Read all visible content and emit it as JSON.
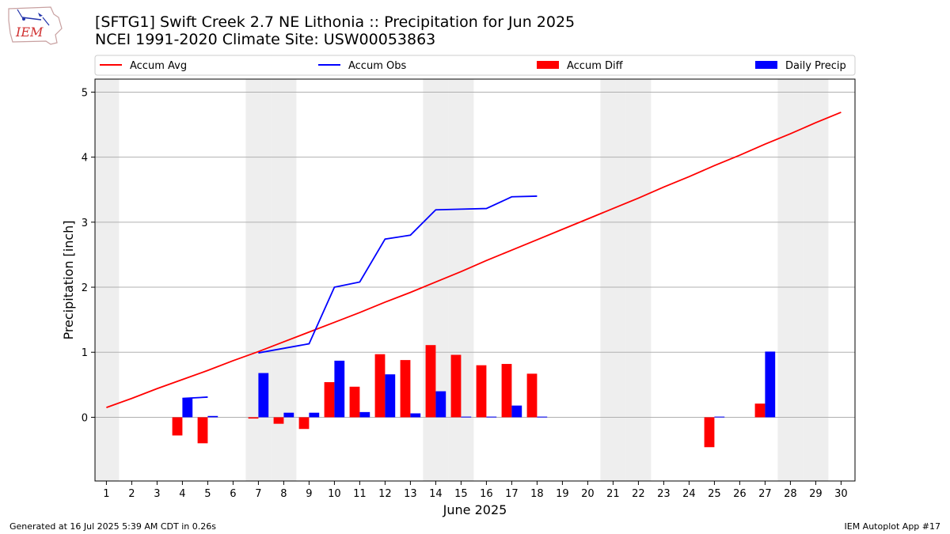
{
  "header": {
    "title_line1": "[SFTG1] Swift Creek 2.7 NE Lithonia :: Precipitation for Jun 2025",
    "title_line2": "NCEI 1991-2020 Climate Site: USW00053863",
    "logo_text": "IEM"
  },
  "footer": {
    "generated": "Generated at 16 Jul 2025 5:39 AM CDT in 0.26s",
    "app": "IEM Autoplot App #17"
  },
  "colors": {
    "accum_avg": "#ff0000",
    "accum_obs": "#0000ff",
    "accum_diff": "#ff0000",
    "daily_precip": "#0000ff",
    "weekend_shade": "#eeeeee",
    "grid": "#b0b0b0"
  },
  "chart_data": {
    "type": "bar",
    "xlabel": "June 2025",
    "ylabel": "Precipitation [inch]",
    "ylim": [
      -0.98,
      5.2
    ],
    "yticks": [
      0,
      1,
      2,
      3,
      4,
      5
    ],
    "grid": "horizontal",
    "legend_position": "top, above plot",
    "x": [
      1,
      2,
      3,
      4,
      5,
      6,
      7,
      8,
      9,
      10,
      11,
      12,
      13,
      14,
      15,
      16,
      17,
      18,
      19,
      20,
      21,
      22,
      23,
      24,
      25,
      26,
      27,
      28,
      29,
      30
    ],
    "weekend_days": [
      1,
      7,
      8,
      14,
      15,
      21,
      22,
      28,
      29
    ],
    "series": [
      {
        "name": "Accum Avg",
        "kind": "line",
        "x": [
          1,
          2,
          3,
          4,
          5,
          6,
          7,
          8,
          9,
          10,
          11,
          12,
          13,
          14,
          15,
          16,
          17,
          18,
          19,
          20,
          21,
          22,
          23,
          24,
          25,
          26,
          27,
          28,
          29,
          30
        ],
        "values": [
          0.15,
          0.29,
          0.44,
          0.58,
          0.72,
          0.87,
          1.01,
          1.16,
          1.31,
          1.46,
          1.61,
          1.77,
          1.92,
          2.08,
          2.24,
          2.41,
          2.57,
          2.73,
          2.89,
          3.05,
          3.21,
          3.37,
          3.54,
          3.7,
          3.87,
          4.03,
          4.2,
          4.36,
          4.53,
          4.69
        ]
      },
      {
        "name": "Accum Obs",
        "kind": "line",
        "segments": [
          {
            "x": [
              4,
              5
            ],
            "values": [
              0.29,
              0.31
            ]
          },
          {
            "x": [
              7,
              8,
              9,
              10,
              11,
              12,
              13,
              14,
              15,
              16,
              17,
              18
            ],
            "values": [
              0.99,
              1.06,
              1.13,
              2.0,
              2.08,
              2.74,
              2.8,
              3.19,
              3.2,
              3.21,
              3.39,
              3.4
            ]
          }
        ]
      },
      {
        "name": "Accum Diff",
        "kind": "bar",
        "x": [
          4,
          5,
          7,
          8,
          9,
          10,
          11,
          12,
          13,
          14,
          15,
          16,
          17,
          18,
          25,
          27
        ],
        "values": [
          -0.28,
          -0.4,
          -0.02,
          -0.1,
          -0.18,
          0.54,
          0.47,
          0.97,
          0.88,
          1.11,
          0.96,
          0.8,
          0.82,
          0.67,
          -0.46,
          0.21
        ]
      },
      {
        "name": "Daily Precip",
        "kind": "bar",
        "x": [
          4,
          5,
          7,
          8,
          9,
          10,
          11,
          12,
          13,
          14,
          15,
          16,
          17,
          18,
          25,
          27
        ],
        "values": [
          0.29,
          0.02,
          0.68,
          0.07,
          0.07,
          0.87,
          0.08,
          0.66,
          0.06,
          0.4,
          0.01,
          0.01,
          0.18,
          0.01,
          0.01,
          1.01
        ]
      }
    ]
  }
}
